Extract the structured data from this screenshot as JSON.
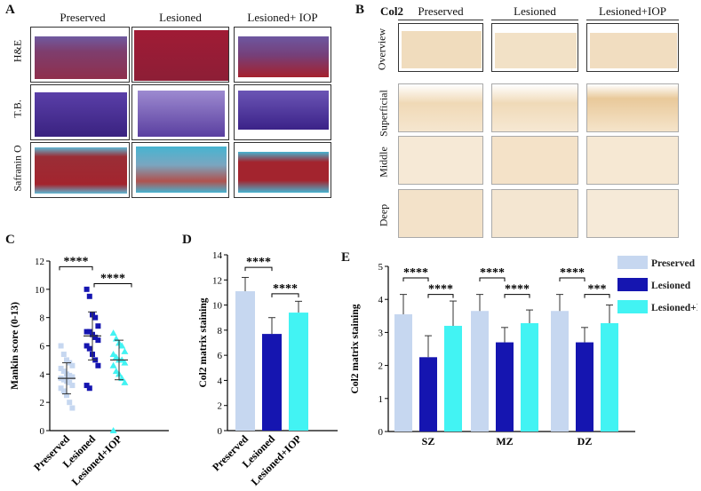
{
  "panel_a": {
    "letter": "A",
    "columns": [
      "Preserved",
      "Lesioned",
      "Lesioned+ IOP"
    ],
    "rows": [
      "H&E",
      "T.B.",
      "Safranin O"
    ]
  },
  "panel_b": {
    "letter": "B",
    "stain": "Col2",
    "columns": [
      "Preserved",
      "Lesioned",
      "Lesioned+IOP"
    ],
    "rows": [
      "Overview",
      "Superficial",
      "Middle",
      "Deep"
    ]
  },
  "colors": {
    "preserved": "#c6d7f0",
    "lesioned": "#1515b0",
    "iop": "#42f3f3",
    "he_bg": "#8b2a4a",
    "tb_bg": "#4a2b93",
    "saf_red": "#a3242e",
    "saf_blue": "#47b4d1",
    "col2_bg": "#f1dfc4"
  },
  "chart_data": [
    {
      "panel": "C",
      "type": "scatter",
      "ylabel": "Mankin score (0-13)",
      "ylim": [
        0,
        12
      ],
      "yticks": [
        0,
        2,
        4,
        6,
        8,
        10,
        12
      ],
      "categories": [
        "Preserved",
        "Lesioned",
        "Lesioned+IOP"
      ],
      "series": [
        {
          "category": "Preserved",
          "mean": 3.7,
          "sd": 1.1,
          "points": [
            6.0,
            5.4,
            5.0,
            4.8,
            4.6,
            4.4,
            4.2,
            4.0,
            3.9,
            3.8,
            3.7,
            3.6,
            3.5,
            3.4,
            3.2,
            3.0,
            2.8,
            2.5,
            2.0,
            1.6
          ]
        },
        {
          "category": "Lesioned",
          "mean": 6.7,
          "sd": 1.7,
          "points": [
            10.0,
            9.5,
            8.2,
            8.0,
            7.4,
            7.0,
            7.0,
            6.8,
            6.6,
            6.4,
            6.0,
            5.8,
            5.4,
            5.0,
            4.6,
            3.2,
            3.0
          ]
        },
        {
          "category": "Lesioned+IOP",
          "mean": 5.0,
          "sd": 1.4,
          "points": [
            6.9,
            6.5,
            6.2,
            6.0,
            5.6,
            5.4,
            5.2,
            5.0,
            5.0,
            4.8,
            4.6,
            4.2,
            4.0,
            3.7,
            3.4,
            0
          ]
        }
      ],
      "significance": [
        {
          "from": 0,
          "to": 1,
          "label": "****"
        },
        {
          "from": 1,
          "to": 2,
          "label": "****"
        }
      ]
    },
    {
      "panel": "D",
      "type": "bar",
      "ylabel": "Col2 matrix staining",
      "ylim": [
        0,
        14
      ],
      "yticks": [
        0,
        2,
        4,
        6,
        8,
        10,
        12,
        14
      ],
      "categories": [
        "Preserved",
        "Lesioned",
        "Lesioned+IOP"
      ],
      "values": [
        11.1,
        7.7,
        9.4
      ],
      "errors": [
        1.1,
        1.3,
        0.9
      ],
      "significance": [
        {
          "from": 0,
          "to": 1,
          "label": "****"
        },
        {
          "from": 1,
          "to": 2,
          "label": "****"
        }
      ]
    },
    {
      "panel": "E",
      "type": "bar",
      "ylabel": "Col2 matrix staining",
      "ylim": [
        0,
        5
      ],
      "yticks": [
        0,
        1,
        2,
        3,
        4,
        5
      ],
      "categories": [
        "SZ",
        "MZ",
        "DZ"
      ],
      "series": [
        {
          "name": "Preserved",
          "values": [
            3.55,
            3.65,
            3.65
          ],
          "errors": [
            0.6,
            0.5,
            0.5
          ]
        },
        {
          "name": "Lesioned",
          "values": [
            2.25,
            2.7,
            2.7
          ],
          "errors": [
            0.65,
            0.45,
            0.45
          ]
        },
        {
          "name": "Lesioned+IOP",
          "values": [
            3.2,
            3.28,
            3.28
          ],
          "errors": [
            0.75,
            0.4,
            0.55
          ]
        }
      ],
      "legend": "top-right",
      "significance": [
        {
          "group": 0,
          "from": 0,
          "to": 1,
          "label": "****"
        },
        {
          "group": 0,
          "from": 1,
          "to": 2,
          "label": "****"
        },
        {
          "group": 1,
          "from": 0,
          "to": 1,
          "label": "****"
        },
        {
          "group": 1,
          "from": 1,
          "to": 2,
          "label": "****"
        },
        {
          "group": 2,
          "from": 0,
          "to": 1,
          "label": "****"
        },
        {
          "group": 2,
          "from": 1,
          "to": 2,
          "label": "***"
        }
      ]
    }
  ]
}
